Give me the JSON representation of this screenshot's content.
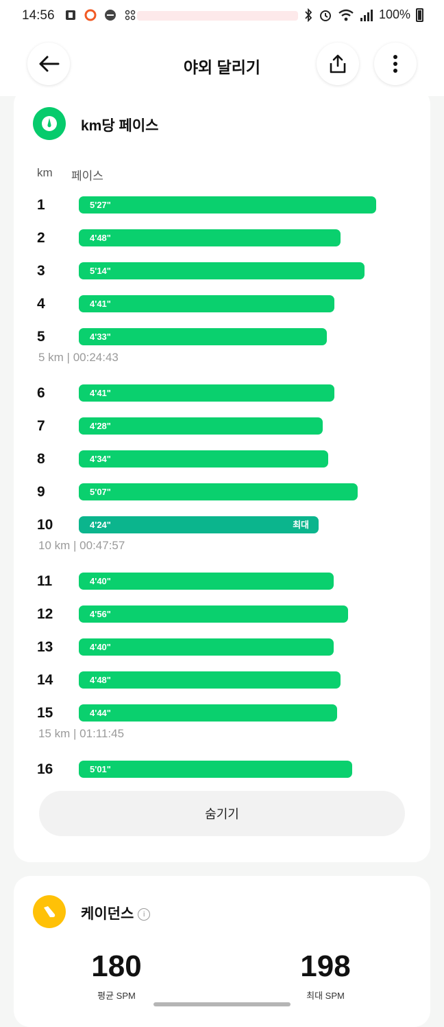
{
  "status": {
    "time": "14:56",
    "battery": "100%"
  },
  "header": {
    "title": "야외 달리기"
  },
  "pace": {
    "title": "km당 페이스",
    "col_km": "km",
    "col_pace": "페이스",
    "hide_label": "숨기기",
    "accent": "#0ad06e",
    "fastest_color": "#0bb58d",
    "rows": [
      {
        "km": "1",
        "pace": "5'27\"",
        "seconds": 327
      },
      {
        "km": "2",
        "pace": "4'48\"",
        "seconds": 288
      },
      {
        "km": "3",
        "pace": "5'14\"",
        "seconds": 314
      },
      {
        "km": "4",
        "pace": "4'41\"",
        "seconds": 281
      },
      {
        "km": "5",
        "pace": "4'33\"",
        "seconds": 273
      },
      {
        "km": "6",
        "pace": "4'41\"",
        "seconds": 281
      },
      {
        "km": "7",
        "pace": "4'28\"",
        "seconds": 268
      },
      {
        "km": "8",
        "pace": "4'34\"",
        "seconds": 274
      },
      {
        "km": "9",
        "pace": "5'07\"",
        "seconds": 307
      },
      {
        "km": "10",
        "pace": "4'24\"",
        "seconds": 264,
        "tag": "최대"
      },
      {
        "km": "11",
        "pace": "4'40\"",
        "seconds": 280
      },
      {
        "km": "12",
        "pace": "4'56\"",
        "seconds": 296
      },
      {
        "km": "13",
        "pace": "4'40\"",
        "seconds": 280
      },
      {
        "km": "14",
        "pace": "4'48\"",
        "seconds": 288
      },
      {
        "km": "15",
        "pace": "4'44\"",
        "seconds": 284
      },
      {
        "km": "16",
        "pace": "5'01\"",
        "seconds": 301
      }
    ],
    "splits": [
      {
        "after": 5,
        "label": "5 km | 00:24:43"
      },
      {
        "after": 10,
        "label": "10 km | 00:47:57"
      },
      {
        "after": 15,
        "label": "15 km | 01:11:45"
      }
    ]
  },
  "cadence": {
    "title": "케이던스",
    "avg_value": "180",
    "avg_label": "평균 SPM",
    "max_value": "198",
    "max_label": "최대 SPM",
    "accent": "#ffc107"
  }
}
